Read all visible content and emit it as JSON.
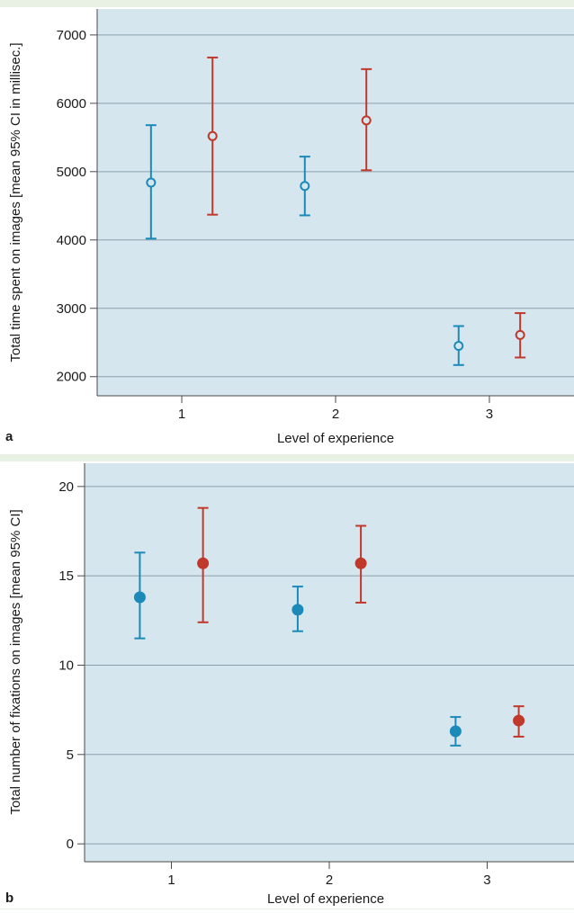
{
  "chart_data": [
    {
      "panel_label": "a",
      "type": "scatter",
      "subtype": "error-bar",
      "xlabel": "Level of experience",
      "ylabel": "Total time spent on images [mean 95% CI in millisec.]",
      "xticks": [
        "1",
        "2",
        "3"
      ],
      "yticks": [
        "2000",
        "3000",
        "4000",
        "5000",
        "6000",
        "7000"
      ],
      "xlim": [
        0.45,
        3.55
      ],
      "ylim": [
        1720,
        7380
      ],
      "marker": "open-circle",
      "grid": "horizontal",
      "background": "#d6e6ef",
      "series": [
        {
          "color": "#1b8ab8",
          "offset": -0.2,
          "x": [
            1,
            2,
            3
          ],
          "mean": [
            4840,
            4790,
            2450
          ],
          "lower": [
            4020,
            4360,
            2170
          ],
          "upper": [
            5680,
            5220,
            2740
          ]
        },
        {
          "color": "#c0392b",
          "offset": 0.2,
          "x": [
            1,
            2,
            3
          ],
          "mean": [
            5520,
            5750,
            2610
          ],
          "lower": [
            4370,
            5020,
            2280
          ],
          "upper": [
            6670,
            6500,
            2930
          ]
        }
      ]
    },
    {
      "panel_label": "b",
      "type": "scatter",
      "subtype": "error-bar",
      "xlabel": "Level of experience",
      "ylabel": "Total number of fixations on images [mean 95% CI]",
      "xticks": [
        "1",
        "2",
        "3"
      ],
      "yticks": [
        "0",
        "5",
        "10",
        "15",
        "20"
      ],
      "xlim": [
        0.45,
        3.55
      ],
      "ylim": [
        -1.0,
        21.3
      ],
      "marker": "filled-circle",
      "grid": "horizontal",
      "background": "#d6e6ef",
      "series": [
        {
          "color": "#1b8ab8",
          "offset": -0.2,
          "x": [
            1,
            2,
            3
          ],
          "mean": [
            13.8,
            13.1,
            6.3
          ],
          "lower": [
            11.5,
            11.9,
            5.5
          ],
          "upper": [
            16.3,
            14.4,
            7.1
          ]
        },
        {
          "color": "#c0392b",
          "offset": 0.2,
          "x": [
            1,
            2,
            3
          ],
          "mean": [
            15.7,
            15.7,
            6.9
          ],
          "lower": [
            12.4,
            13.5,
            6.0
          ],
          "upper": [
            18.8,
            17.8,
            7.7
          ]
        }
      ]
    }
  ]
}
